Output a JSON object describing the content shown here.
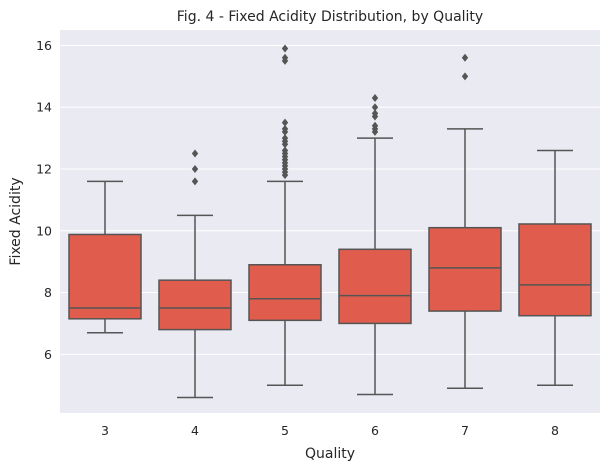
{
  "chart_data": {
    "type": "box",
    "title": "Fig. 4 - Fixed Acidity Distribution, by Quality",
    "xlabel": "Quality",
    "ylabel": "Fixed Acidity",
    "ylim": [
      4.1,
      16.5
    ],
    "yticks": [
      6,
      8,
      10,
      12,
      14,
      16
    ],
    "grid": true,
    "colors": {
      "box_fill": "#E05C4C",
      "line": "#555555",
      "background": "#EAEAF2",
      "grid": "#FFFFFF"
    },
    "categories": [
      "3",
      "4",
      "5",
      "6",
      "7",
      "8"
    ],
    "series": [
      {
        "category": "3",
        "min": 6.7,
        "q1": 7.15,
        "median": 7.5,
        "q3": 9.88,
        "max": 11.6,
        "outliers": []
      },
      {
        "category": "4",
        "min": 4.6,
        "q1": 6.8,
        "median": 7.5,
        "q3": 8.4,
        "max": 10.5,
        "outliers": [
          11.6,
          12.0,
          12.5
        ]
      },
      {
        "category": "5",
        "min": 5.0,
        "q1": 7.1,
        "median": 7.8,
        "q3": 8.9,
        "max": 11.6,
        "outliers": [
          11.8,
          11.9,
          12.0,
          12.1,
          12.2,
          12.3,
          12.4,
          12.5,
          12.6,
          12.8,
          12.9,
          13.0,
          13.2,
          13.3,
          13.5,
          15.5,
          15.6,
          15.9
        ]
      },
      {
        "category": "6",
        "min": 4.7,
        "q1": 7.0,
        "median": 7.9,
        "q3": 9.4,
        "max": 13.0,
        "outliers": [
          13.2,
          13.3,
          13.4,
          13.7,
          13.8,
          14.0,
          14.3
        ]
      },
      {
        "category": "7",
        "min": 4.9,
        "q1": 7.4,
        "median": 8.8,
        "q3": 10.1,
        "max": 13.3,
        "outliers": [
          15.0,
          15.6
        ]
      },
      {
        "category": "8",
        "min": 5.0,
        "q1": 7.25,
        "median": 8.25,
        "q3": 10.22,
        "max": 12.6,
        "outliers": []
      }
    ]
  }
}
